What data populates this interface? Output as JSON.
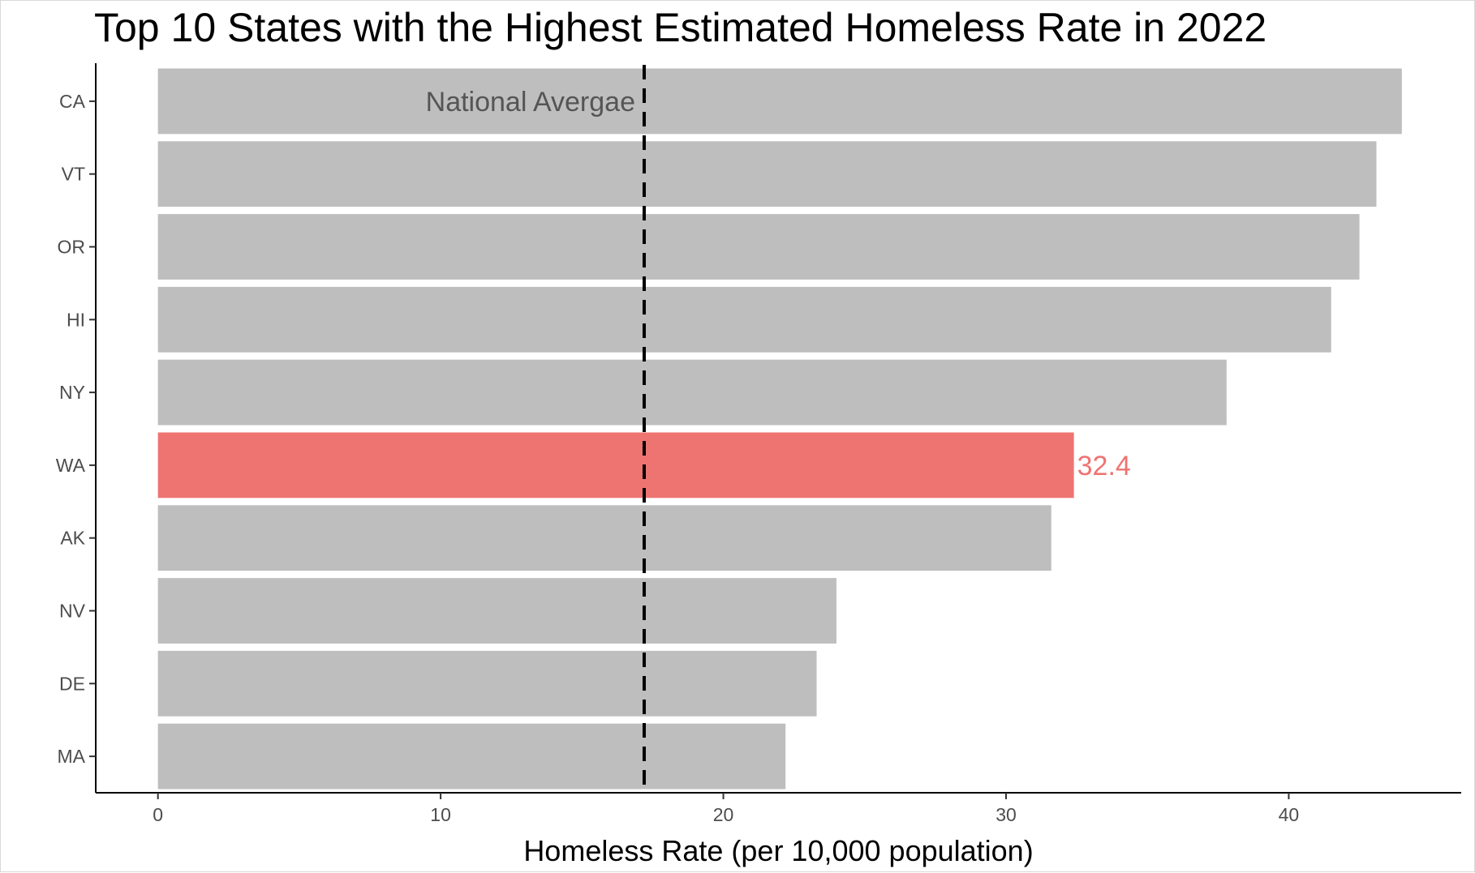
{
  "chart_data": {
    "type": "bar",
    "orientation": "horizontal",
    "title": "Top 10 States with the Highest Estimated Homeless Rate in 2022",
    "xlabel": "Homeless Rate (per 10,000 population)",
    "ylabel": "",
    "categories": [
      "CA",
      "VT",
      "OR",
      "HI",
      "NY",
      "WA",
      "AK",
      "NV",
      "DE",
      "MA"
    ],
    "values": [
      44.0,
      43.1,
      42.5,
      41.5,
      37.8,
      32.4,
      31.6,
      24.0,
      23.3,
      22.2
    ],
    "xlim": [
      -2.2,
      46.1
    ],
    "xticks": [
      0,
      10,
      20,
      30,
      40
    ],
    "bar_color": "#bebebe",
    "highlight": {
      "category": "WA",
      "color": "#ee7472",
      "label": "32.4"
    },
    "reference_line": {
      "value": 17.2,
      "style": "dashed",
      "color": "#000000",
      "label": "National Avergae"
    },
    "grid": false
  }
}
